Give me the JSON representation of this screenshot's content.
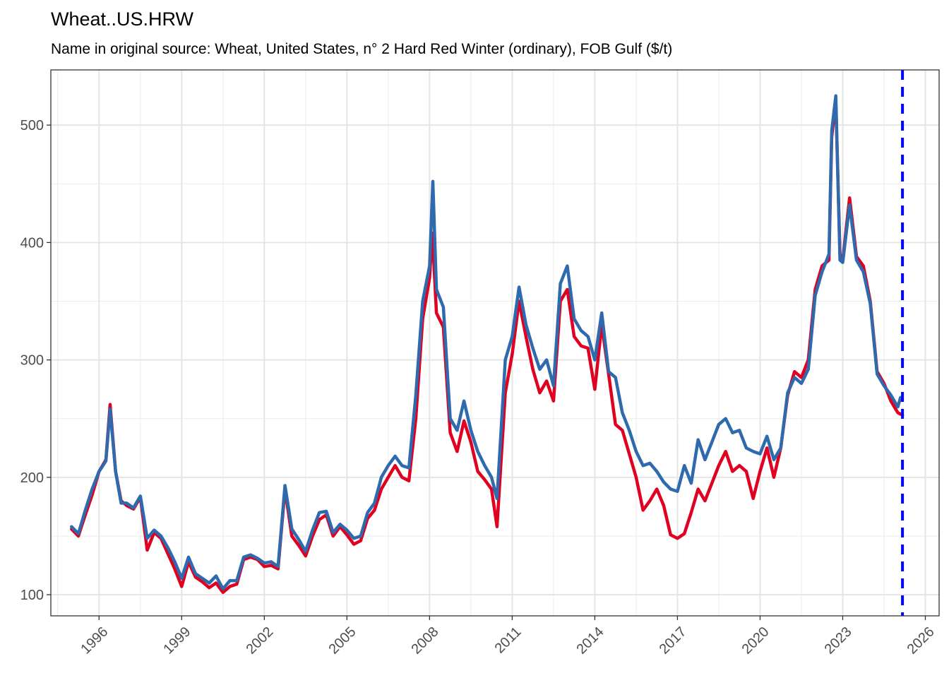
{
  "chart_data": {
    "type": "line",
    "title": "Wheat..US.HRW",
    "subtitle": "Name in original source: Wheat, United States, n° 2 Hard Red Winter (ordinary), FOB Gulf ($/t)",
    "xlabel": "",
    "ylabel": "",
    "xlim": [
      1994.25,
      2026.5
    ],
    "ylim": [
      82,
      547
    ],
    "grid": true,
    "legend": "none",
    "y_ticks": [
      100,
      200,
      300,
      400,
      500
    ],
    "x_ticks": [
      1996,
      1999,
      2002,
      2005,
      2008,
      2011,
      2014,
      2017,
      2020,
      2023,
      2026
    ],
    "vline": {
      "x": 2025.17,
      "color": "#0000ff",
      "style": "dashed"
    },
    "colors": {
      "series_a": "#e00020",
      "series_b": "#2e6aad"
    },
    "series": [
      {
        "name": "series_a",
        "color": "#e00020",
        "points": [
          [
            1995.0,
            156
          ],
          [
            1995.25,
            150
          ],
          [
            1995.5,
            168
          ],
          [
            1995.75,
            185
          ],
          [
            1996.0,
            205
          ],
          [
            1996.25,
            215
          ],
          [
            1996.4,
            262
          ],
          [
            1996.6,
            205
          ],
          [
            1996.8,
            180
          ],
          [
            1997.0,
            176
          ],
          [
            1997.25,
            173
          ],
          [
            1997.5,
            183
          ],
          [
            1997.75,
            138
          ],
          [
            1998.0,
            153
          ],
          [
            1998.25,
            148
          ],
          [
            1998.5,
            135
          ],
          [
            1998.75,
            122
          ],
          [
            1999.0,
            107
          ],
          [
            1999.25,
            128
          ],
          [
            1999.5,
            115
          ],
          [
            1999.75,
            111
          ],
          [
            2000.0,
            106
          ],
          [
            2000.25,
            110
          ],
          [
            2000.5,
            102
          ],
          [
            2000.75,
            107
          ],
          [
            2001.0,
            109
          ],
          [
            2001.25,
            130
          ],
          [
            2001.5,
            132
          ],
          [
            2001.75,
            130
          ],
          [
            2002.0,
            124
          ],
          [
            2002.25,
            125
          ],
          [
            2002.5,
            122
          ],
          [
            2002.75,
            190
          ],
          [
            2003.0,
            150
          ],
          [
            2003.25,
            142
          ],
          [
            2003.5,
            133
          ],
          [
            2003.75,
            150
          ],
          [
            2004.0,
            164
          ],
          [
            2004.25,
            168
          ],
          [
            2004.5,
            150
          ],
          [
            2004.75,
            158
          ],
          [
            2005.0,
            151
          ],
          [
            2005.25,
            143
          ],
          [
            2005.5,
            146
          ],
          [
            2005.75,
            165
          ],
          [
            2006.0,
            172
          ],
          [
            2006.25,
            190
          ],
          [
            2006.5,
            200
          ],
          [
            2006.75,
            210
          ],
          [
            2007.0,
            200
          ],
          [
            2007.25,
            197
          ],
          [
            2007.5,
            250
          ],
          [
            2007.75,
            335
          ],
          [
            2008.0,
            370
          ],
          [
            2008.1,
            408
          ],
          [
            2008.25,
            340
          ],
          [
            2008.5,
            328
          ],
          [
            2008.75,
            238
          ],
          [
            2009.0,
            222
          ],
          [
            2009.25,
            248
          ],
          [
            2009.5,
            230
          ],
          [
            2009.75,
            205
          ],
          [
            2010.0,
            198
          ],
          [
            2010.25,
            190
          ],
          [
            2010.45,
            158
          ],
          [
            2010.75,
            272
          ],
          [
            2011.0,
            305
          ],
          [
            2011.25,
            350
          ],
          [
            2011.5,
            320
          ],
          [
            2011.75,
            292
          ],
          [
            2012.0,
            272
          ],
          [
            2012.25,
            282
          ],
          [
            2012.5,
            265
          ],
          [
            2012.75,
            350
          ],
          [
            2013.0,
            360
          ],
          [
            2013.25,
            320
          ],
          [
            2013.5,
            312
          ],
          [
            2013.75,
            310
          ],
          [
            2014.0,
            275
          ],
          [
            2014.25,
            330
          ],
          [
            2014.5,
            288
          ],
          [
            2014.75,
            245
          ],
          [
            2015.0,
            240
          ],
          [
            2015.25,
            220
          ],
          [
            2015.5,
            200
          ],
          [
            2015.75,
            172
          ],
          [
            2016.0,
            180
          ],
          [
            2016.25,
            190
          ],
          [
            2016.5,
            176
          ],
          [
            2016.75,
            151
          ],
          [
            2017.0,
            148
          ],
          [
            2017.25,
            152
          ],
          [
            2017.5,
            170
          ],
          [
            2017.75,
            190
          ],
          [
            2018.0,
            180
          ],
          [
            2018.25,
            195
          ],
          [
            2018.5,
            210
          ],
          [
            2018.75,
            222
          ],
          [
            2019.0,
            205
          ],
          [
            2019.25,
            210
          ],
          [
            2019.5,
            205
          ],
          [
            2019.75,
            182
          ],
          [
            2020.0,
            205
          ],
          [
            2020.25,
            225
          ],
          [
            2020.5,
            200
          ],
          [
            2020.75,
            225
          ],
          [
            2021.0,
            270
          ],
          [
            2021.25,
            290
          ],
          [
            2021.5,
            285
          ],
          [
            2021.75,
            300
          ],
          [
            2022.0,
            360
          ],
          [
            2022.25,
            380
          ],
          [
            2022.5,
            385
          ],
          [
            2022.6,
            490
          ],
          [
            2022.75,
            520
          ],
          [
            2022.9,
            390
          ],
          [
            2023.0,
            385
          ],
          [
            2023.25,
            438
          ],
          [
            2023.5,
            388
          ],
          [
            2023.75,
            380
          ],
          [
            2024.0,
            350
          ],
          [
            2024.25,
            290
          ],
          [
            2024.5,
            280
          ],
          [
            2024.75,
            265
          ],
          [
            2025.0,
            255
          ],
          [
            2025.17,
            253
          ]
        ]
      },
      {
        "name": "series_b",
        "color": "#2e6aad",
        "points": [
          [
            1995.0,
            158
          ],
          [
            1995.25,
            152
          ],
          [
            1995.5,
            172
          ],
          [
            1995.75,
            190
          ],
          [
            1996.0,
            205
          ],
          [
            1996.25,
            214
          ],
          [
            1996.4,
            258
          ],
          [
            1996.6,
            205
          ],
          [
            1996.8,
            178
          ],
          [
            1997.0,
            178
          ],
          [
            1997.25,
            174
          ],
          [
            1997.5,
            184
          ],
          [
            1997.75,
            148
          ],
          [
            1998.0,
            155
          ],
          [
            1998.25,
            150
          ],
          [
            1998.5,
            140
          ],
          [
            1998.75,
            128
          ],
          [
            1999.0,
            114
          ],
          [
            1999.25,
            132
          ],
          [
            1999.5,
            118
          ],
          [
            1999.75,
            114
          ],
          [
            2000.0,
            110
          ],
          [
            2000.25,
            116
          ],
          [
            2000.5,
            105
          ],
          [
            2000.75,
            112
          ],
          [
            2001.0,
            112
          ],
          [
            2001.25,
            132
          ],
          [
            2001.5,
            134
          ],
          [
            2001.75,
            131
          ],
          [
            2002.0,
            127
          ],
          [
            2002.25,
            128
          ],
          [
            2002.5,
            124
          ],
          [
            2002.75,
            193
          ],
          [
            2003.0,
            156
          ],
          [
            2003.25,
            147
          ],
          [
            2003.5,
            137
          ],
          [
            2003.75,
            155
          ],
          [
            2004.0,
            170
          ],
          [
            2004.25,
            171
          ],
          [
            2004.5,
            153
          ],
          [
            2004.75,
            160
          ],
          [
            2005.0,
            155
          ],
          [
            2005.25,
            148
          ],
          [
            2005.5,
            150
          ],
          [
            2005.75,
            170
          ],
          [
            2006.0,
            178
          ],
          [
            2006.25,
            200
          ],
          [
            2006.5,
            210
          ],
          [
            2006.75,
            218
          ],
          [
            2007.0,
            210
          ],
          [
            2007.25,
            208
          ],
          [
            2007.5,
            270
          ],
          [
            2007.75,
            350
          ],
          [
            2008.0,
            380
          ],
          [
            2008.12,
            452
          ],
          [
            2008.25,
            360
          ],
          [
            2008.5,
            345
          ],
          [
            2008.75,
            250
          ],
          [
            2009.0,
            240
          ],
          [
            2009.25,
            265
          ],
          [
            2009.5,
            240
          ],
          [
            2009.75,
            222
          ],
          [
            2010.0,
            210
          ],
          [
            2010.25,
            200
          ],
          [
            2010.45,
            182
          ],
          [
            2010.75,
            300
          ],
          [
            2011.0,
            320
          ],
          [
            2011.25,
            362
          ],
          [
            2011.5,
            330
          ],
          [
            2011.75,
            310
          ],
          [
            2012.0,
            292
          ],
          [
            2012.25,
            300
          ],
          [
            2012.5,
            278
          ],
          [
            2012.75,
            365
          ],
          [
            2013.0,
            380
          ],
          [
            2013.25,
            335
          ],
          [
            2013.5,
            325
          ],
          [
            2013.75,
            320
          ],
          [
            2014.0,
            300
          ],
          [
            2014.25,
            340
          ],
          [
            2014.5,
            290
          ],
          [
            2014.75,
            285
          ],
          [
            2015.0,
            255
          ],
          [
            2015.25,
            240
          ],
          [
            2015.5,
            222
          ],
          [
            2015.75,
            210
          ],
          [
            2016.0,
            212
          ],
          [
            2016.25,
            205
          ],
          [
            2016.5,
            196
          ],
          [
            2016.75,
            190
          ],
          [
            2017.0,
            188
          ],
          [
            2017.25,
            210
          ],
          [
            2017.5,
            195
          ],
          [
            2017.75,
            232
          ],
          [
            2018.0,
            215
          ],
          [
            2018.25,
            230
          ],
          [
            2018.5,
            245
          ],
          [
            2018.75,
            250
          ],
          [
            2019.0,
            238
          ],
          [
            2019.25,
            240
          ],
          [
            2019.5,
            225
          ],
          [
            2019.75,
            222
          ],
          [
            2020.0,
            220
          ],
          [
            2020.25,
            235
          ],
          [
            2020.5,
            215
          ],
          [
            2020.75,
            225
          ],
          [
            2021.0,
            272
          ],
          [
            2021.25,
            285
          ],
          [
            2021.5,
            280
          ],
          [
            2021.75,
            292
          ],
          [
            2022.0,
            355
          ],
          [
            2022.25,
            375
          ],
          [
            2022.5,
            390
          ],
          [
            2022.6,
            495
          ],
          [
            2022.75,
            525
          ],
          [
            2022.9,
            385
          ],
          [
            2023.0,
            383
          ],
          [
            2023.25,
            432
          ],
          [
            2023.5,
            385
          ],
          [
            2023.75,
            375
          ],
          [
            2024.0,
            348
          ],
          [
            2024.25,
            288
          ],
          [
            2024.5,
            278
          ],
          [
            2024.75,
            270
          ],
          [
            2025.0,
            260
          ],
          [
            2025.1,
            268
          ]
        ]
      }
    ]
  }
}
